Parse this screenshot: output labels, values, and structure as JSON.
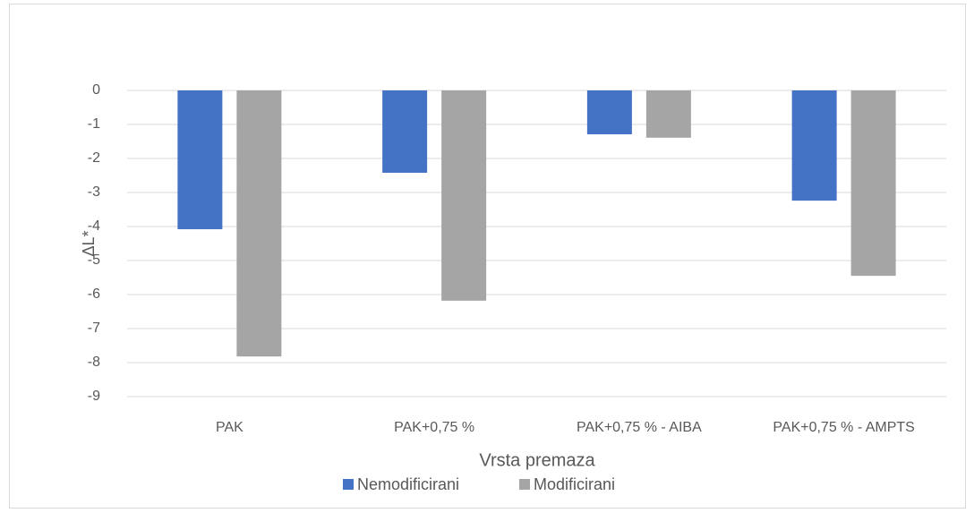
{
  "chart_data": {
    "type": "bar",
    "categories": [
      "PAK",
      "PAK+0,75 %",
      "PAK+0,75 % - AIBA",
      "PAK+0,75 % - AMPTS"
    ],
    "series": [
      {
        "name": "Nemodificirani",
        "color": "#4472c4",
        "values": [
          -4.08,
          -2.42,
          -1.29,
          -3.24
        ]
      },
      {
        "name": "Modificirani",
        "color": "#a5a5a5",
        "values": [
          -7.82,
          -6.18,
          -1.39,
          -5.45
        ]
      }
    ],
    "ylim": [
      -9,
      0
    ],
    "yticks": [
      0,
      -1,
      -2,
      -3,
      -4,
      -5,
      -6,
      -7,
      -8,
      -9
    ],
    "y_label": "ΔL*",
    "x_label": "Vrsta premaza",
    "grid": true,
    "legend": "bottom"
  }
}
